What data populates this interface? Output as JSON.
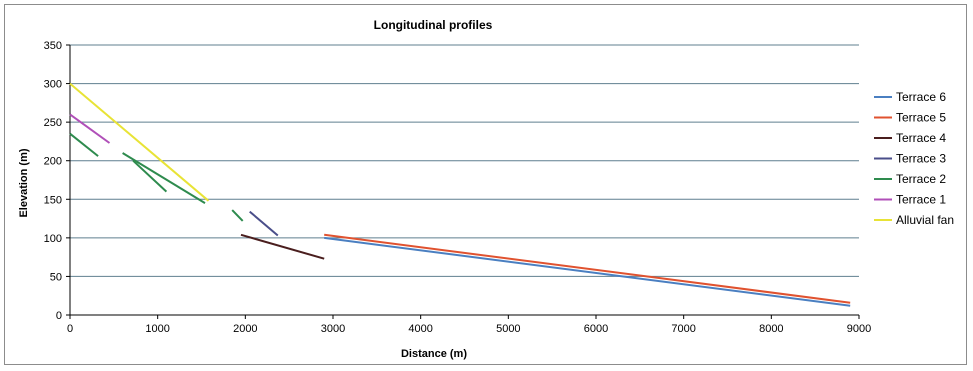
{
  "chart_data": {
    "type": "line",
    "title": "Longitudinal profiles",
    "xlabel": "Distance (m)",
    "ylabel": "Elevation (m)",
    "xlim": [
      0,
      9000
    ],
    "ylim": [
      0,
      350
    ],
    "x_ticks": [
      0,
      1000,
      2000,
      3000,
      4000,
      5000,
      6000,
      7000,
      8000,
      9000
    ],
    "y_ticks": [
      0,
      50,
      100,
      150,
      200,
      250,
      300,
      350
    ],
    "grid": "horizontal",
    "legend_position": "right",
    "series": [
      {
        "name": "Terrace 6",
        "color": "#4a7fc1",
        "segments": [
          [
            [
              2900,
              100
            ],
            [
              8900,
              12
            ]
          ]
        ]
      },
      {
        "name": "Terrace 5",
        "color": "#e0522f",
        "segments": [
          [
            [
              2900,
              104
            ],
            [
              8900,
              16
            ]
          ]
        ]
      },
      {
        "name": "Terrace 4",
        "color": "#4a1e1e",
        "segments": [
          [
            [
              1950,
              104
            ],
            [
              2900,
              73
            ]
          ]
        ]
      },
      {
        "name": "Terrace 3",
        "color": "#4a4e8a",
        "segments": [
          [
            [
              2050,
              134
            ],
            [
              2370,
              103
            ]
          ]
        ]
      },
      {
        "name": "Terrace 2",
        "color": "#2e8b4e",
        "segments": [
          [
            [
              0,
              235
            ],
            [
              320,
              206
            ]
          ],
          [
            [
              600,
              210
            ],
            [
              1540,
              145
            ]
          ],
          [
            [
              720,
              200
            ],
            [
              1100,
              160
            ]
          ],
          [
            [
              1850,
              136
            ],
            [
              1970,
              122
            ]
          ]
        ]
      },
      {
        "name": "Terrace 1",
        "color": "#b04fb8",
        "segments": [
          [
            [
              0,
              260
            ],
            [
              450,
              223
            ]
          ]
        ]
      },
      {
        "name": "Alluvial fan",
        "color": "#e8e336",
        "segments": [
          [
            [
              0,
              300
            ],
            [
              1580,
              148
            ]
          ]
        ]
      }
    ]
  }
}
